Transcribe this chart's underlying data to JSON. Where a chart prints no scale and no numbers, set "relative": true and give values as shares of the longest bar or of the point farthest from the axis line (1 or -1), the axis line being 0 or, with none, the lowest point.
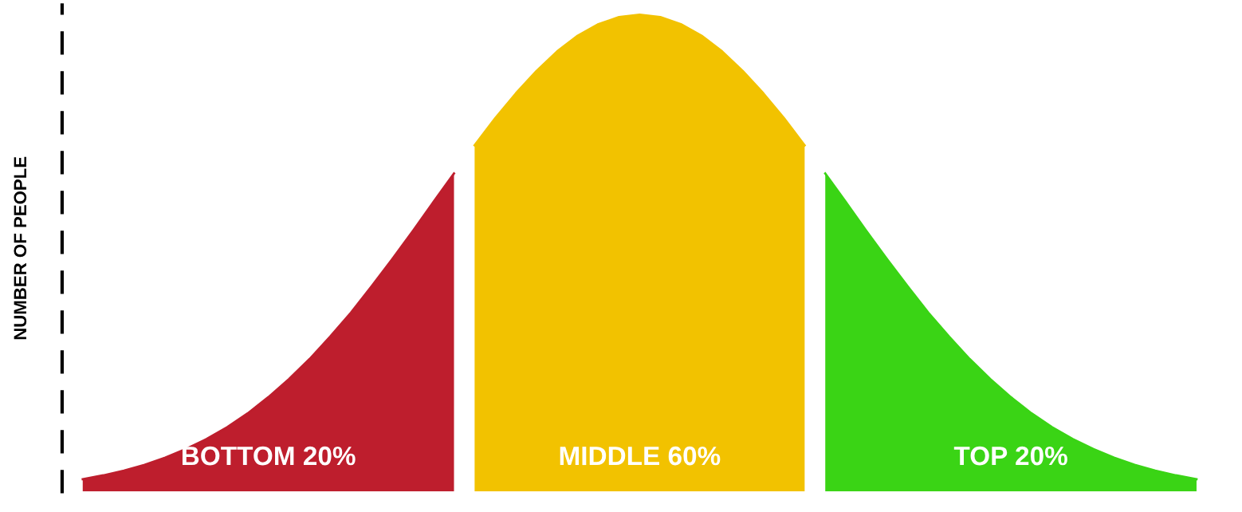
{
  "chart_data": {
    "type": "area",
    "ylabel": "NUMBER OF PEOPLE",
    "relative": true,
    "categories": [
      null,
      null,
      null,
      null,
      null,
      null,
      null,
      null,
      null,
      null,
      null,
      null,
      null,
      null,
      null,
      null,
      null,
      null,
      null,
      null,
      null,
      null,
      null,
      null,
      null,
      null,
      null,
      null,
      null,
      null,
      null,
      null,
      null,
      null,
      null,
      null,
      null,
      null,
      null,
      null,
      null,
      null,
      null,
      null,
      null,
      null,
      null,
      null,
      null,
      null,
      null,
      null,
      null,
      null,
      null
    ],
    "series": [
      {
        "name": "BOTTOM 20%",
        "color": "#be1e2d",
        "values": [
          0.026,
          0.034,
          0.044,
          0.056,
          0.071,
          0.089,
          0.11,
          0.135,
          0.164,
          0.198,
          0.236,
          0.278,
          0.325,
          0.375,
          0.43,
          0.487,
          0.546,
          0.607,
          0.667,
          null,
          null,
          null,
          null,
          null,
          null,
          null,
          null,
          null,
          null,
          null,
          null,
          null,
          null,
          null,
          null,
          null,
          null,
          null,
          null,
          null,
          null,
          null,
          null,
          null,
          null,
          null,
          null,
          null,
          null,
          null,
          null,
          null,
          null,
          null,
          null
        ]
      },
      {
        "name": "MIDDLE 60%",
        "color": "#f2c200",
        "values": [
          null,
          null,
          null,
          null,
          null,
          null,
          null,
          null,
          null,
          null,
          null,
          null,
          null,
          null,
          null,
          null,
          null,
          null,
          null,
          0.726,
          0.783,
          0.835,
          0.882,
          0.923,
          0.956,
          0.98,
          0.995,
          1,
          0.995,
          0.98,
          0.956,
          0.923,
          0.882,
          0.835,
          0.783,
          0.726,
          null,
          null,
          null,
          null,
          null,
          null,
          null,
          null,
          null,
          null,
          null,
          null,
          null,
          null,
          null,
          null,
          null,
          null,
          null
        ]
      },
      {
        "name": "TOP 20%",
        "color": "#3ad415",
        "values": [
          null,
          null,
          null,
          null,
          null,
          null,
          null,
          null,
          null,
          null,
          null,
          null,
          null,
          null,
          null,
          null,
          null,
          null,
          null,
          null,
          null,
          null,
          null,
          null,
          null,
          null,
          null,
          null,
          null,
          null,
          null,
          null,
          null,
          null,
          null,
          null,
          0.667,
          0.607,
          0.546,
          0.487,
          0.43,
          0.375,
          0.325,
          0.278,
          0.236,
          0.198,
          0.164,
          0.135,
          0.11,
          0.089,
          0.071,
          0.056,
          0.044,
          0.034,
          0.026
        ]
      }
    ]
  }
}
